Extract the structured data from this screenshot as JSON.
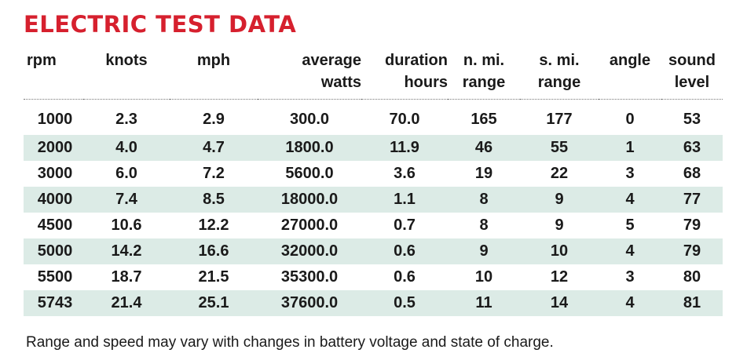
{
  "title": "ELECTRIC TEST DATA",
  "columns": [
    {
      "line1": "rpm",
      "line2": ""
    },
    {
      "line1": "knots",
      "line2": ""
    },
    {
      "line1": "mph",
      "line2": ""
    },
    {
      "line1": "average",
      "line2": "watts"
    },
    {
      "line1": "duration",
      "line2": "hours"
    },
    {
      "line1": "n. mi.",
      "line2": "range"
    },
    {
      "line1": "s. mi.",
      "line2": "range"
    },
    {
      "line1": "angle",
      "line2": ""
    },
    {
      "line1": "sound",
      "line2": "level"
    }
  ],
  "rows": [
    [
      "1000",
      "2.3",
      "2.9",
      "300.0",
      "70.0",
      "165",
      "177",
      "0",
      "53"
    ],
    [
      "2000",
      "4.0",
      "4.7",
      "1800.0",
      "11.9",
      "46",
      "55",
      "1",
      "63"
    ],
    [
      "3000",
      "6.0",
      "7.2",
      "5600.0",
      "3.6",
      "19",
      "22",
      "3",
      "68"
    ],
    [
      "4000",
      "7.4",
      "8.5",
      "18000.0",
      "1.1",
      "8",
      "9",
      "4",
      "77"
    ],
    [
      "4500",
      "10.6",
      "12.2",
      "27000.0",
      "0.7",
      "8",
      "9",
      "5",
      "79"
    ],
    [
      "5000",
      "14.2",
      "16.6",
      "32000.0",
      "0.6",
      "9",
      "10",
      "4",
      "79"
    ],
    [
      "5500",
      "18.7",
      "21.5",
      "35300.0",
      "0.6",
      "10",
      "12",
      "3",
      "80"
    ],
    [
      "5743",
      "21.4",
      "25.1",
      "37600.0",
      "0.5",
      "11",
      "14",
      "4",
      "81"
    ]
  ],
  "note": "Range and speed may vary with changes in battery voltage and state of charge.",
  "colors": {
    "title": "#d6202e",
    "row_shade": "#dcebe6",
    "text": "#1a1a1a"
  }
}
